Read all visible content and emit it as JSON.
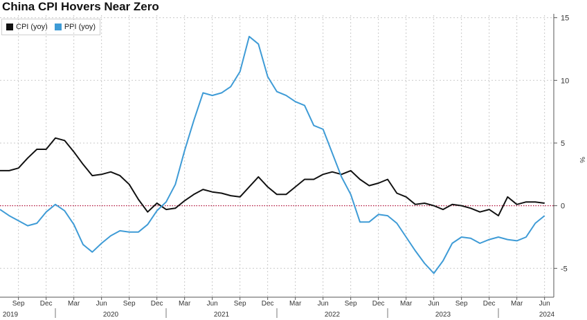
{
  "title": "China CPI Hovers Near Zero",
  "chart_data": {
    "type": "line",
    "title": "China CPI Hovers Near Zero",
    "xlabel": "",
    "ylabel": "%",
    "ylim": [
      -7.3,
      15.2
    ],
    "y_ticks": [
      15,
      10,
      5,
      0,
      -5
    ],
    "x_range": [
      "2019-07",
      "2024-07"
    ],
    "month_ticks": [
      "Sep",
      "Dec",
      "Mar",
      "Jun",
      "Sep",
      "Dec",
      "Mar",
      "Jun",
      "Sep",
      "Dec",
      "Mar",
      "Jun",
      "Sep",
      "Dec",
      "Mar",
      "Jun",
      "Sep",
      "Dec",
      "Mar",
      "Jun"
    ],
    "year_labels": [
      "2019",
      "2020",
      "2021",
      "2022",
      "2023",
      "2024"
    ],
    "reference_line": 0,
    "grid": true,
    "legend_position": "top-left",
    "x": [
      "2019-07",
      "2019-08",
      "2019-09",
      "2019-10",
      "2019-11",
      "2019-12",
      "2020-01",
      "2020-02",
      "2020-03",
      "2020-04",
      "2020-05",
      "2020-06",
      "2020-07",
      "2020-08",
      "2020-09",
      "2020-10",
      "2020-11",
      "2020-12",
      "2021-01",
      "2021-02",
      "2021-03",
      "2021-04",
      "2021-05",
      "2021-06",
      "2021-07",
      "2021-08",
      "2021-09",
      "2021-10",
      "2021-11",
      "2021-12",
      "2022-01",
      "2022-02",
      "2022-03",
      "2022-04",
      "2022-05",
      "2022-06",
      "2022-07",
      "2022-08",
      "2022-09",
      "2022-10",
      "2022-11",
      "2022-12",
      "2023-01",
      "2023-02",
      "2023-03",
      "2023-04",
      "2023-05",
      "2023-06",
      "2023-07",
      "2023-08",
      "2023-09",
      "2023-10",
      "2023-11",
      "2023-12",
      "2024-01",
      "2024-02",
      "2024-03",
      "2024-04",
      "2024-05",
      "2024-06"
    ],
    "series": [
      {
        "name": "CPI (yoy)",
        "color": "#111111",
        "values": [
          2.8,
          2.8,
          3.0,
          3.8,
          4.5,
          4.5,
          5.4,
          5.2,
          4.3,
          3.3,
          2.4,
          2.5,
          2.7,
          2.4,
          1.7,
          0.5,
          -0.5,
          0.2,
          -0.3,
          -0.2,
          0.4,
          0.9,
          1.3,
          1.1,
          1.0,
          0.8,
          0.7,
          1.5,
          2.3,
          1.5,
          0.9,
          0.9,
          1.5,
          2.1,
          2.1,
          2.5,
          2.7,
          2.5,
          2.8,
          2.1,
          1.6,
          1.8,
          2.1,
          1.0,
          0.7,
          0.1,
          0.2,
          0.0,
          -0.3,
          0.1,
          0.0,
          -0.2,
          -0.5,
          -0.3,
          -0.8,
          0.7,
          0.1,
          0.3,
          0.3,
          0.2
        ]
      },
      {
        "name": "PPI (yoy)",
        "color": "#3e9bd6",
        "values": [
          -0.3,
          -0.8,
          -1.2,
          -1.6,
          -1.4,
          -0.5,
          0.1,
          -0.4,
          -1.5,
          -3.1,
          -3.7,
          -3.0,
          -2.4,
          -2.0,
          -2.1,
          -2.1,
          -1.5,
          -0.4,
          0.3,
          1.7,
          4.4,
          6.8,
          9.0,
          8.8,
          9.0,
          9.5,
          10.7,
          13.5,
          12.9,
          10.3,
          9.1,
          8.8,
          8.3,
          8.0,
          6.4,
          6.1,
          4.2,
          2.3,
          0.9,
          -1.3,
          -1.3,
          -0.7,
          -0.8,
          -1.4,
          -2.5,
          -3.6,
          -4.6,
          -5.4,
          -4.4,
          -3.0,
          -2.5,
          -2.6,
          -3.0,
          -2.7,
          -2.5,
          -2.7,
          -2.8,
          -2.5,
          -1.4,
          -0.8
        ]
      }
    ]
  }
}
